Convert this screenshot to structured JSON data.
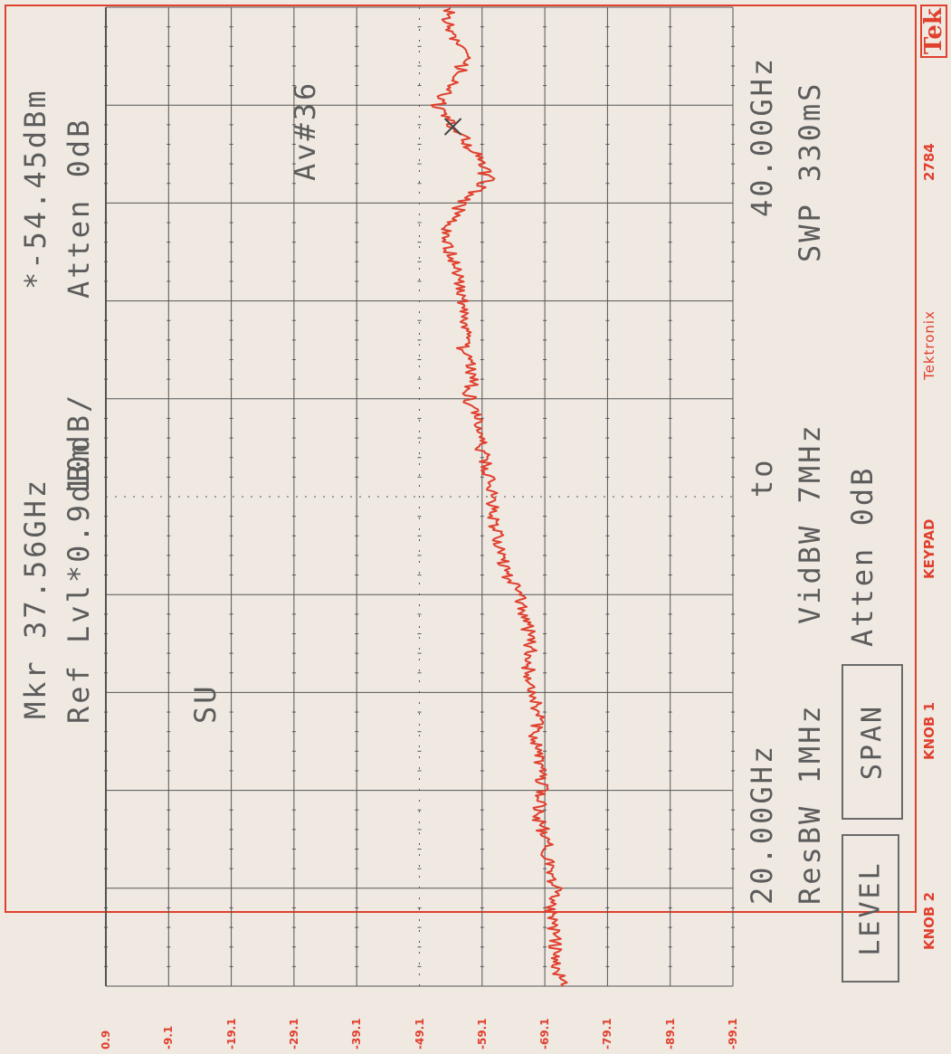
{
  "header": {
    "marker": "Mkr  37.56GHz",
    "marker_value": "*-54.45dBm",
    "ref_level": "Ref Lvl*0.9dBm",
    "scale": "10dB/",
    "atten_top": "Atten 0dB",
    "averaging": "Av#36",
    "status": "SU"
  },
  "footer": {
    "start_freq": "20.00GHz",
    "to_label": "to",
    "stop_freq": "40.00GHz",
    "res_bw": "ResBW 1MHz",
    "vid_bw": "VidBW 7MHz",
    "sweep": "SWP 330mS",
    "atten_bottom": "Atten 0dB"
  },
  "buttons": {
    "level": "LEVEL",
    "span": "SPAN"
  },
  "knobs": {
    "knob2": "KNOB 2",
    "knob1": "KNOB 1",
    "keypad": "KEYPAD",
    "brand": "Tektronix",
    "model": "2784"
  },
  "logo": "Tek",
  "colors": {
    "trace": "#e0402e",
    "grid": "#555555",
    "background": "#efe9e2",
    "text": "#5c5c5c"
  },
  "chart_data": {
    "type": "line",
    "x_unit": "GHz",
    "y_unit": "dBm",
    "xlim": [
      20.0,
      40.0
    ],
    "ylim": [
      -99.1,
      0.9
    ],
    "y_ticks": [
      "0.9",
      "-9.1",
      "-19.1",
      "-29.1",
      "-39.1",
      "-49.1",
      "-59.1",
      "-69.1",
      "-79.1",
      "-89.1",
      "-99.1"
    ],
    "marker": {
      "x": 37.56,
      "y": -54.45
    },
    "series": [
      {
        "x": [
          20.0,
          20.5,
          21.0,
          21.5,
          22.0,
          22.5,
          23.0,
          23.5,
          24.0,
          24.5,
          25.0,
          25.5,
          26.0,
          26.5,
          27.0,
          27.5,
          28.0,
          28.5,
          29.0,
          29.5,
          30.0,
          30.5,
          31.0,
          31.5,
          32.0,
          32.5,
          33.0,
          33.5,
          34.0,
          34.5,
          35.0,
          35.5,
          36.0,
          36.5,
          37.0,
          37.5,
          38.0,
          38.5,
          39.0,
          39.5,
          40.0
        ],
        "y": [
          -72.0,
          -70.5,
          -71.0,
          -70.0,
          -70.8,
          -69.8,
          -69.2,
          -68.0,
          -68.6,
          -68.2,
          -67.4,
          -68.0,
          -67.5,
          -66.5,
          -66.9,
          -66.0,
          -65.0,
          -62.5,
          -62.0,
          -61.0,
          -60.8,
          -60.0,
          -59.0,
          -58.2,
          -57.0,
          -57.6,
          -56.0,
          -56.6,
          -56.0,
          -55.0,
          -54.0,
          -53.3,
          -56.0,
          -60.0,
          -58.0,
          -55.0,
          -52.0,
          -55.0,
          -56.5,
          -53.5,
          -54.0
        ]
      }
    ]
  }
}
